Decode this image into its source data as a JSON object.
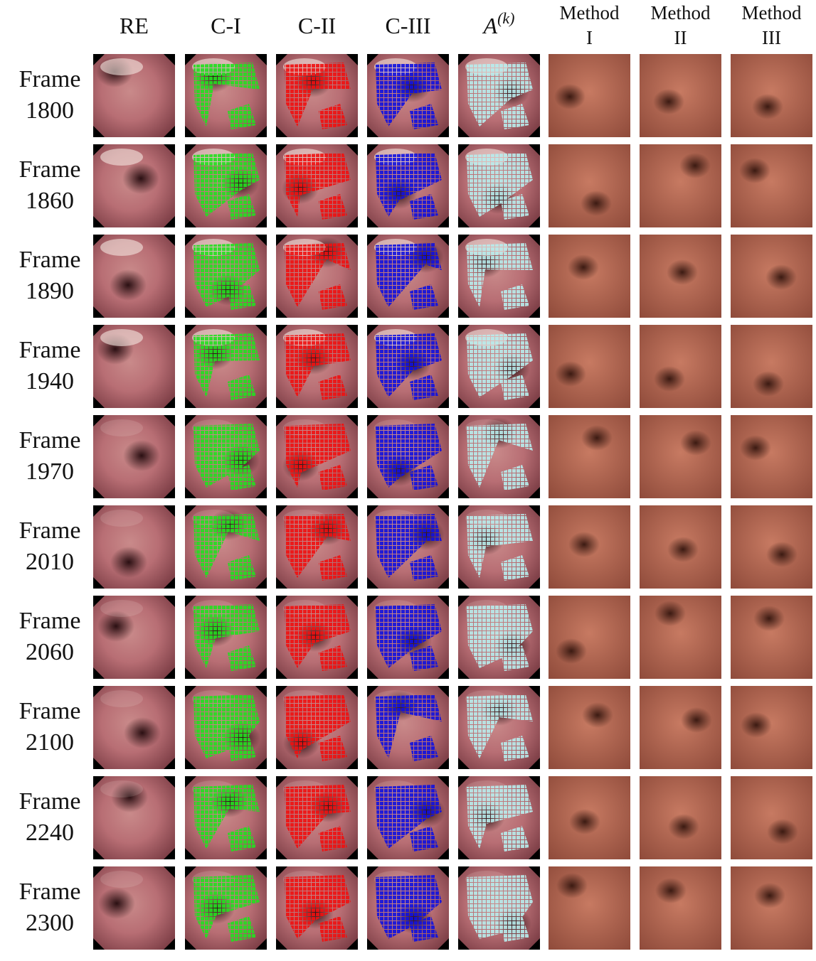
{
  "columns": [
    {
      "label": "RE"
    },
    {
      "label": "C-I"
    },
    {
      "label": "C-II"
    },
    {
      "label": "C-III"
    },
    {
      "label": "A",
      "superscript": "(k)"
    },
    {
      "lines": [
        "Method",
        "I"
      ]
    },
    {
      "lines": [
        "Method",
        "II"
      ]
    },
    {
      "lines": [
        "Method",
        "III"
      ]
    }
  ],
  "rows": [
    {
      "label": "Frame",
      "number": "1800"
    },
    {
      "label": "Frame",
      "number": "1860"
    },
    {
      "label": "Frame",
      "number": "1890"
    },
    {
      "label": "Frame",
      "number": "1940"
    },
    {
      "label": "Frame",
      "number": "1970"
    },
    {
      "label": "Frame",
      "number": "2010"
    },
    {
      "label": "Frame",
      "number": "2060"
    },
    {
      "label": "Frame",
      "number": "2100"
    },
    {
      "label": "Frame",
      "number": "2240"
    },
    {
      "label": "Frame",
      "number": "2300"
    }
  ]
}
